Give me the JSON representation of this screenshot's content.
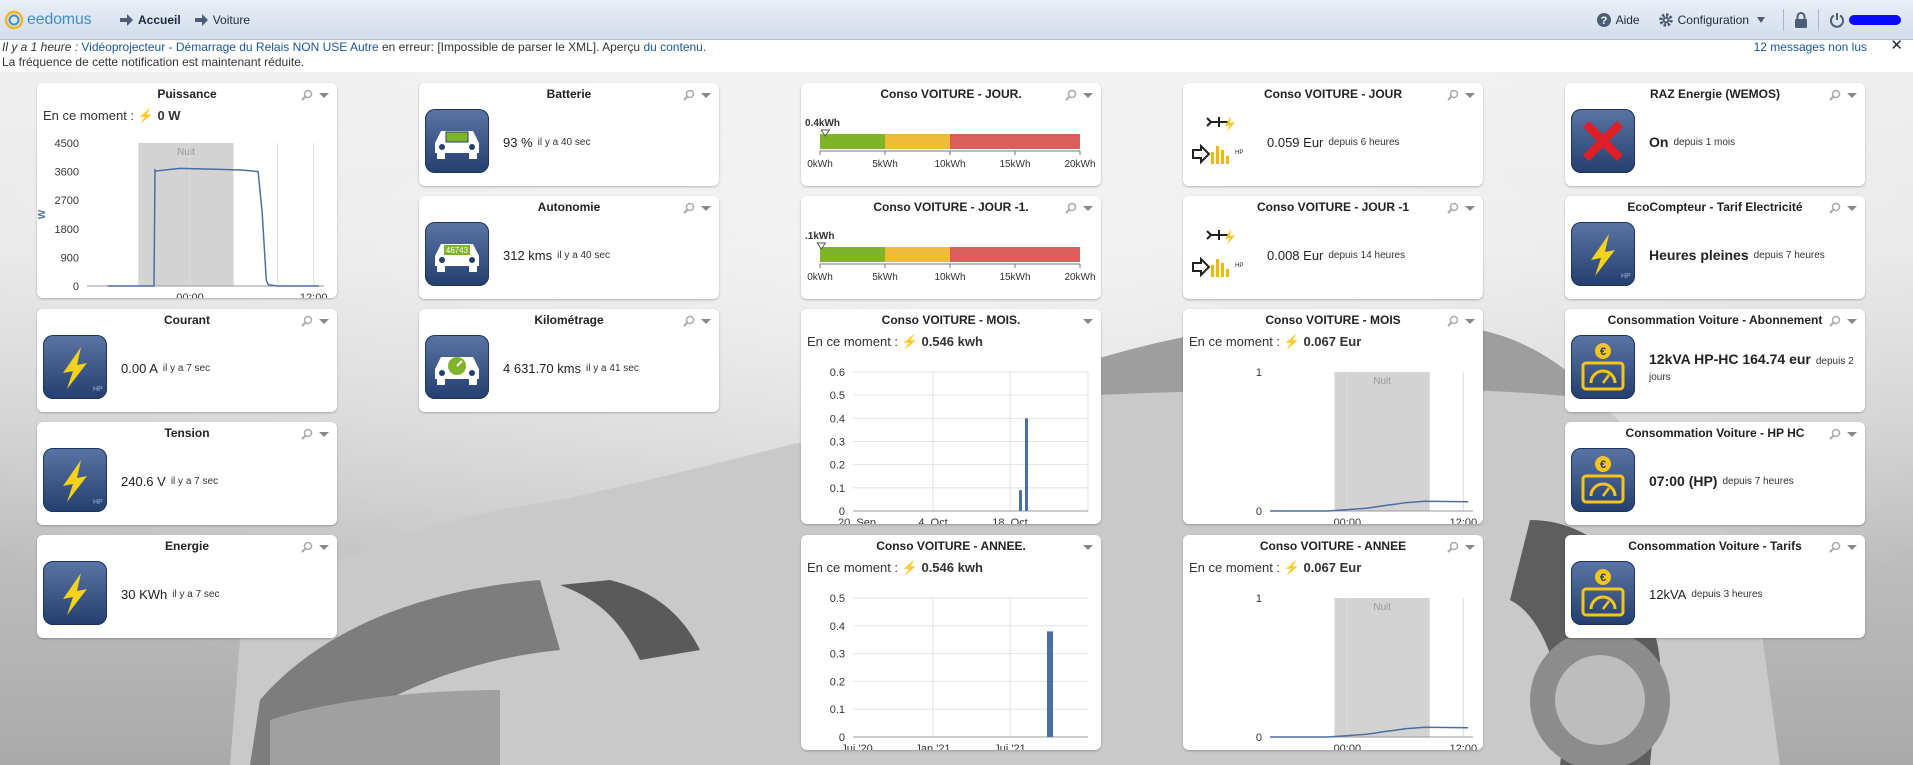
{
  "logo_text": "eedomus",
  "nav": {
    "home": "Accueil",
    "current": "Voiture"
  },
  "toolbar": {
    "help": "Aide",
    "config": "Configuration"
  },
  "notification": {
    "time": "Il y a 1 heure :",
    "link": "Vidéoprojecteur - Démarrage du Relais NON USE Autre",
    "text": "en erreur: [Impossible de parser le XML]. Aperçu",
    "content_link": "du contenu.",
    "text_end": "",
    "line2": "La fréquence de cette notification est maintenant réduite.",
    "unread": "12 messages non lus",
    "close": "✕"
  },
  "widgets": {
    "puissance": {
      "title": "Puissance",
      "moment": "En ce moment :",
      "value": "0 W",
      "y_label": "W",
      "night": "Nuit"
    },
    "courant": {
      "title": "Courant",
      "value": "0.00 A",
      "since": "il y a 7 sec"
    },
    "tension": {
      "title": "Tension",
      "value": "240.6 V",
      "since": "il y a 7 sec"
    },
    "energie": {
      "title": "Energie",
      "value": "30 KWh",
      "since": "il y a 7 sec"
    },
    "batterie": {
      "title": "Batterie",
      "value": "93 %",
      "since": "il y a 40 sec"
    },
    "autonomie": {
      "title": "Autonomie",
      "value": "312 kms",
      "since": "il y a 40 sec",
      "badge": "46743"
    },
    "kilometrage": {
      "title": "Kilométrage",
      "value": "4 631.70 kms",
      "since": "il y a 41 sec"
    },
    "conso_jour_gauge": {
      "title": "Conso VOITURE - JOUR.",
      "marker": "0.4kWh",
      "marker_value": 0.4
    },
    "conso_jour1_gauge": {
      "title": "Conso VOITURE - JOUR -1.",
      "marker": ".1kWh",
      "marker_value": 0.1
    },
    "conso_mois_chart": {
      "title": "Conso VOITURE - MOIS.",
      "moment": "En ce moment :",
      "value": "0.546 kwh"
    },
    "conso_annee_chart": {
      "title": "Conso VOITURE - ANNEE.",
      "moment": "En ce moment :",
      "value": "0.546 kwh"
    },
    "conso_jour": {
      "title": "Conso VOITURE - JOUR",
      "value": "0.059 Eur",
      "since": "depuis 6 heures"
    },
    "conso_jour1": {
      "title": "Conso VOITURE - JOUR -1",
      "value": "0.008 Eur",
      "since": "depuis 14 heures"
    },
    "conso_mois": {
      "title": "Conso VOITURE - MOIS",
      "moment": "En ce moment :",
      "value": "0.067 Eur",
      "night": "Nuit"
    },
    "conso_annee": {
      "title": "Conso VOITURE - ANNEE",
      "moment": "En ce moment :",
      "value": "0.067 Eur",
      "night": "Nuit"
    },
    "raz": {
      "title": "RAZ Energie (WEMOS)",
      "value": "On",
      "since": "depuis 1 mois"
    },
    "ecocompteur": {
      "title": "EcoCompteur - Tarif Electricité",
      "value": "Heures pleines",
      "since": "depuis 7 heures"
    },
    "abonnement": {
      "title": "Consommation Voiture - Abonnement",
      "value": "12kVA HP-HC 164.74 eur",
      "since": "depuis 2 jours"
    },
    "hphc": {
      "title": "Consommation Voiture - HP HC",
      "value": "07:00 (HP)",
      "since": "depuis 7 heures"
    },
    "tarifs": {
      "title": "Consommation Voiture - Tarifs",
      "value": "12kVA",
      "since": "depuis 3 heures"
    }
  },
  "chart_data": [
    {
      "type": "line",
      "name": "Puissance",
      "ylabel": "W",
      "y_ticks": [
        "4500",
        "3600",
        "2700",
        "1800",
        "900",
        "0"
      ],
      "x_ticks": [
        "00:00",
        "12:00"
      ],
      "ylim": [
        0,
        4500
      ],
      "x_hours": [
        -8,
        -3.5,
        -3.4,
        -3.3,
        -1,
        2,
        5,
        6.6,
        7.0,
        7.4,
        7.6,
        8.5,
        12.5
      ],
      "y": [
        0,
        0,
        3650,
        3620,
        3700,
        3680,
        3650,
        3600,
        2300,
        180,
        40,
        0,
        0
      ],
      "night_band": "Nuit"
    },
    {
      "type": "gauge",
      "name": "Conso VOITURE - JOUR.",
      "ticks": [
        "0kWh",
        "5kWh",
        "10kWh",
        "15kWh",
        "20kWh"
      ],
      "range": [
        0,
        20
      ],
      "bands": [
        {
          "from": 0,
          "to": 5,
          "color": "#7fb32a"
        },
        {
          "from": 5,
          "to": 10,
          "color": "#efbb3a"
        },
        {
          "from": 10,
          "to": 20,
          "color": "#d9605a"
        }
      ],
      "value": 0.4
    },
    {
      "type": "gauge",
      "name": "Conso VOITURE - JOUR -1.",
      "ticks": [
        "0kWh",
        "5kWh",
        "10kWh",
        "15kWh",
        "20kWh"
      ],
      "range": [
        0,
        20
      ],
      "bands": [
        {
          "from": 0,
          "to": 5,
          "color": "#7fb32a"
        },
        {
          "from": 5,
          "to": 10,
          "color": "#efbb3a"
        },
        {
          "from": 10,
          "to": 20,
          "color": "#d9605a"
        }
      ],
      "value": 0.1
    },
    {
      "type": "bar",
      "name": "Conso VOITURE - MOIS.",
      "y_ticks": [
        "0.6",
        "0.5",
        "0.4",
        "0.3",
        "0.2",
        "0.1",
        "0"
      ],
      "x_ticks": [
        "20. Sep",
        "4. Oct",
        "18. Oct"
      ],
      "ylim": [
        0,
        0.6
      ],
      "bars": [
        {
          "x": "19. Oct",
          "value": 0.09
        },
        {
          "x": "20. Oct",
          "value": 0.4
        }
      ]
    },
    {
      "type": "bar",
      "name": "Conso VOITURE - ANNEE.",
      "y_ticks": [
        "0.5",
        "0.4",
        "0.3",
        "0.2",
        "0.1",
        "0"
      ],
      "x_ticks": [
        "Jui '20",
        "Jan '21",
        "Jui '21"
      ],
      "ylim": [
        0,
        0.5
      ],
      "bars": [
        {
          "x": "Oct '21",
          "value": 0.38
        }
      ]
    },
    {
      "type": "line",
      "name": "Conso VOITURE - MOIS",
      "y_ticks": [
        "1",
        "0"
      ],
      "x_ticks": [
        "00:00",
        "12:00"
      ],
      "ylim": [
        0,
        1
      ],
      "night_band": "Nuit",
      "x_hours": [
        -8,
        -2,
        0,
        2,
        4,
        5,
        6,
        8,
        12.5
      ],
      "y": [
        0,
        0,
        0.01,
        0.02,
        0.04,
        0.05,
        0.06,
        0.07,
        0.067
      ]
    },
    {
      "type": "line",
      "name": "Conso VOITURE - ANNEE",
      "y_ticks": [
        "1",
        "0"
      ],
      "x_ticks": [
        "00:00",
        "12:00"
      ],
      "ylim": [
        0,
        1
      ],
      "night_band": "Nuit",
      "x_hours": [
        -8,
        -2,
        0,
        2,
        4,
        5,
        6,
        8,
        12.5
      ],
      "y": [
        0,
        0,
        0.01,
        0.02,
        0.04,
        0.05,
        0.06,
        0.07,
        0.067
      ]
    }
  ]
}
